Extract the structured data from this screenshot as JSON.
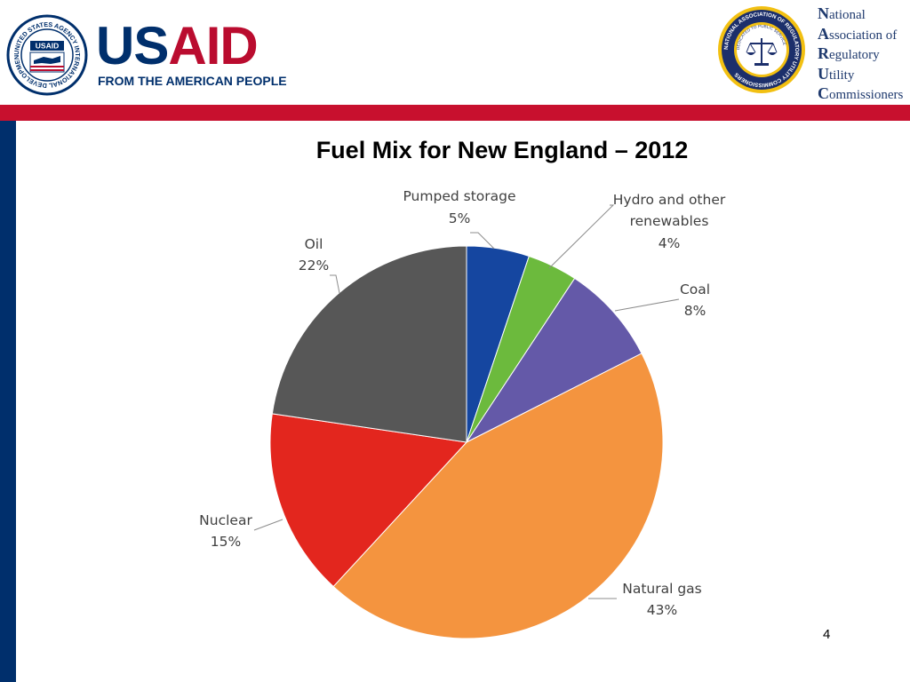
{
  "header": {
    "usaid_seal_text": "UNITED STATES AGENCY INTERNATIONAL DEVELOPMENT",
    "usaid_badge": "USAID",
    "usaid_word_a": "US",
    "usaid_word_b": "AID",
    "usaid_tagline": "FROM THE AMERICAN PEOPLE",
    "naruc_seal_text": "NATIONAL ASSOCIATION OF REGULATORY UTILITY COMMISSIONERS",
    "naruc_seal_inner": "DEDICATED TO PUBLIC SERVICE",
    "naruc_lines": [
      {
        "initial": "N",
        "rest": "ational"
      },
      {
        "initial": "A",
        "rest": "ssociation of"
      },
      {
        "initial": "R",
        "rest": "egulatory"
      },
      {
        "initial": "U",
        "rest": "tility"
      },
      {
        "initial": "C",
        "rest": "ommissioners"
      }
    ]
  },
  "colors": {
    "red_band": "#c8102e",
    "blue_strip": "#002f6c",
    "usaid_blue": "#002f6c",
    "usaid_red": "#ba0c2f"
  },
  "page_number": "4",
  "chart_data": {
    "type": "pie",
    "title": "Fuel Mix for New England – 2012",
    "start": "12 o'clock",
    "direction": "clockwise",
    "slices": [
      {
        "label": "Pumped storage",
        "value": 5,
        "value_label": "5%",
        "color": "#1546a0"
      },
      {
        "label": "Hydro and other renewables",
        "value": 4,
        "value_label": "4%",
        "color": "#6cba3d"
      },
      {
        "label": "Coal",
        "value": 8,
        "value_label": "8%",
        "color": "#6459a8"
      },
      {
        "label": "Natural gas",
        "value": 43,
        "value_label": "43%",
        "color": "#f4943f"
      },
      {
        "label": "Nuclear",
        "value": 15,
        "value_label": "15%",
        "color": "#e3261e"
      },
      {
        "label": "Oil",
        "value": 22,
        "value_label": "22%",
        "color": "#575757"
      }
    ]
  }
}
